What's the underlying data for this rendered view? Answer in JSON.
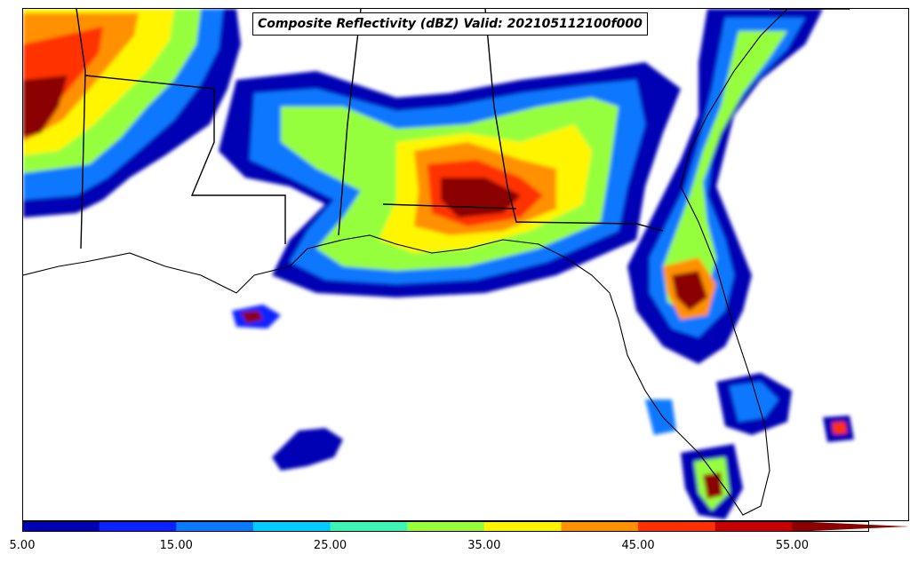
{
  "title": "Composite Reflectivity (dBZ) Valid: 202105112100f000",
  "colorbar": {
    "ticks": [
      "5.00",
      "15.00",
      "25.00",
      "35.00",
      "45.00",
      "55.00"
    ],
    "bins": [
      {
        "from": 5,
        "to": 10,
        "color": "#0000b4"
      },
      {
        "from": 10,
        "to": 15,
        "color": "#0a22ff"
      },
      {
        "from": 15,
        "to": 20,
        "color": "#0a78ff"
      },
      {
        "from": 20,
        "to": 25,
        "color": "#00ccff"
      },
      {
        "from": 25,
        "to": 30,
        "color": "#3cf5b4"
      },
      {
        "from": 30,
        "to": 35,
        "color": "#96ff3c"
      },
      {
        "from": 35,
        "to": 40,
        "color": "#fff500"
      },
      {
        "from": 40,
        "to": 45,
        "color": "#ff9000"
      },
      {
        "from": 45,
        "to": 50,
        "color": "#ff3000"
      },
      {
        "from": 50,
        "to": 55,
        "color": "#c80000"
      },
      {
        "from": 55,
        "to": 60,
        "color": "#8b0000"
      }
    ],
    "extend": "max"
  },
  "map": {
    "region": "Southeastern United States",
    "background": "#ffffff",
    "coastline_color": "#000000"
  }
}
